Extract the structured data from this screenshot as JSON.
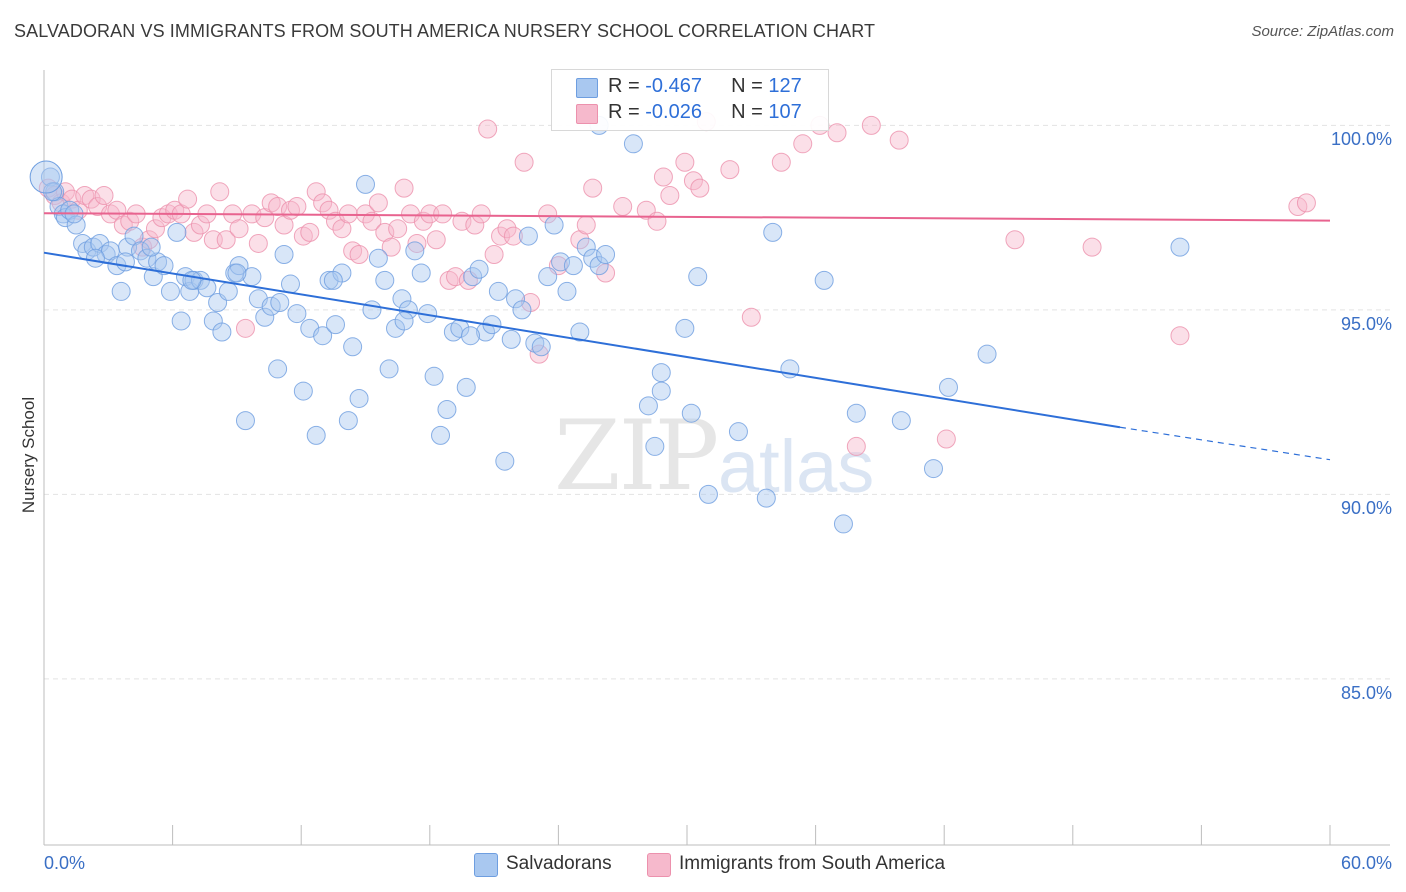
{
  "header": {
    "title": "SALVADORAN VS IMMIGRANTS FROM SOUTH AMERICA NURSERY SCHOOL CORRELATION CHART",
    "source": "Source: ZipAtlas.com"
  },
  "watermark": {
    "zip": "ZIP",
    "atlas": "atlas"
  },
  "colors": {
    "blue": "#2e6fd8",
    "blue_fill": "#a9c8f0",
    "pink": "#e8638f",
    "pink_fill": "#f6b9cc",
    "grid": "#e3e3e3",
    "axis_label": "#3a6fc5"
  },
  "legend": {
    "series": [
      {
        "r_label": "R = ",
        "r": "-0.467",
        "n_label": "N = ",
        "n": "127"
      },
      {
        "r_label": "R = ",
        "r": "-0.026",
        "n_label": "N = ",
        "n": "107"
      }
    ],
    "bottom": [
      "Salvadorans",
      "Immigrants from South America"
    ]
  },
  "chart_data": {
    "type": "scatter",
    "title": "SALVADORAN VS IMMIGRANTS FROM SOUTH AMERICA NURSERY SCHOOL CORRELATION CHART",
    "xlabel": "",
    "ylabel": "Nursery School",
    "xlim": [
      0,
      60
    ],
    "ylim": [
      80.5,
      101.5
    ],
    "x_tick_labels": [
      "0.0%",
      "60.0%"
    ],
    "y_ticks": [
      85,
      90,
      95,
      100
    ],
    "y_tick_labels": [
      "85.0%",
      "90.0%",
      "95.0%",
      "100.0%"
    ],
    "legend_position": "top-center",
    "series": [
      {
        "name": "Salvadorans",
        "color": "#2e6fd8",
        "R": -0.467,
        "N": 127,
        "trend": {
          "x0": 0,
          "y0": 96.55,
          "x1": 50.2,
          "y1": 91.82,
          "dashed_to_x": 60,
          "dashed_to_y": 90.94
        },
        "points": [
          [
            0.3,
            98.6
          ],
          [
            0.5,
            98.2
          ],
          [
            0.7,
            97.8
          ],
          [
            0.9,
            97.6
          ],
          [
            1.0,
            97.5
          ],
          [
            1.2,
            97.7
          ],
          [
            1.5,
            97.3
          ],
          [
            1.8,
            96.8
          ],
          [
            2.0,
            96.6
          ],
          [
            2.3,
            96.7
          ],
          [
            2.6,
            96.8
          ],
          [
            2.9,
            96.5
          ],
          [
            3.1,
            96.6
          ],
          [
            3.4,
            96.2
          ],
          [
            3.6,
            95.5
          ],
          [
            3.9,
            96.7
          ],
          [
            4.2,
            97.0
          ],
          [
            4.5,
            96.6
          ],
          [
            4.8,
            96.4
          ],
          [
            5.1,
            95.9
          ],
          [
            5.3,
            96.3
          ],
          [
            5.6,
            96.2
          ],
          [
            5.9,
            95.5
          ],
          [
            6.2,
            97.1
          ],
          [
            6.4,
            94.7
          ],
          [
            6.6,
            95.9
          ],
          [
            6.8,
            95.5
          ],
          [
            7.0,
            95.8
          ],
          [
            7.3,
            95.8
          ],
          [
            7.6,
            95.6
          ],
          [
            7.9,
            94.7
          ],
          [
            8.1,
            95.2
          ],
          [
            8.3,
            94.4
          ],
          [
            8.6,
            95.5
          ],
          [
            8.9,
            96.0
          ],
          [
            9.1,
            96.2
          ],
          [
            9.4,
            92.0
          ],
          [
            9.7,
            95.9
          ],
          [
            10.0,
            95.3
          ],
          [
            10.3,
            94.8
          ],
          [
            10.6,
            95.1
          ],
          [
            10.9,
            93.4
          ],
          [
            11.2,
            96.5
          ],
          [
            11.5,
            95.7
          ],
          [
            11.8,
            94.9
          ],
          [
            12.1,
            92.8
          ],
          [
            12.4,
            94.5
          ],
          [
            12.7,
            91.6
          ],
          [
            13.0,
            94.3
          ],
          [
            13.3,
            95.8
          ],
          [
            13.6,
            94.6
          ],
          [
            13.9,
            96.0
          ],
          [
            14.2,
            92.0
          ],
          [
            14.4,
            94.0
          ],
          [
            14.7,
            92.6
          ],
          [
            15.0,
            98.4
          ],
          [
            15.3,
            95.0
          ],
          [
            15.6,
            96.4
          ],
          [
            15.9,
            95.8
          ],
          [
            16.1,
            93.4
          ],
          [
            16.4,
            94.5
          ],
          [
            16.7,
            95.3
          ],
          [
            17.0,
            95.0
          ],
          [
            17.3,
            96.6
          ],
          [
            17.6,
            96.0
          ],
          [
            17.9,
            94.9
          ],
          [
            18.2,
            93.2
          ],
          [
            18.5,
            91.6
          ],
          [
            18.8,
            92.3
          ],
          [
            19.1,
            94.4
          ],
          [
            19.4,
            94.5
          ],
          [
            19.7,
            92.9
          ],
          [
            20.0,
            95.9
          ],
          [
            20.3,
            96.1
          ],
          [
            20.6,
            94.4
          ],
          [
            20.9,
            94.6
          ],
          [
            21.2,
            95.5
          ],
          [
            21.5,
            90.9
          ],
          [
            21.8,
            94.2
          ],
          [
            22.0,
            95.3
          ],
          [
            22.3,
            95.0
          ],
          [
            22.6,
            97.0
          ],
          [
            22.9,
            94.1
          ],
          [
            23.2,
            94.0
          ],
          [
            23.5,
            95.9
          ],
          [
            23.8,
            97.3
          ],
          [
            24.1,
            96.3
          ],
          [
            24.4,
            95.5
          ],
          [
            24.7,
            96.2
          ],
          [
            25.0,
            94.4
          ],
          [
            25.3,
            96.7
          ],
          [
            25.6,
            96.4
          ],
          [
            25.9,
            96.2
          ],
          [
            26.2,
            96.5
          ],
          [
            25.9,
            100.0
          ],
          [
            27.5,
            99.5
          ],
          [
            28.2,
            92.4
          ],
          [
            28.5,
            91.3
          ],
          [
            28.8,
            93.3
          ],
          [
            28.8,
            92.8
          ],
          [
            29.9,
            94.5
          ],
          [
            30.2,
            92.2
          ],
          [
            30.5,
            95.9
          ],
          [
            31.0,
            90.0
          ],
          [
            32.4,
            91.7
          ],
          [
            33.7,
            89.9
          ],
          [
            34.0,
            97.1
          ],
          [
            34.8,
            93.4
          ],
          [
            36.4,
            95.8
          ],
          [
            37.3,
            89.2
          ],
          [
            37.9,
            92.2
          ],
          [
            40.0,
            92.0
          ],
          [
            41.5,
            90.7
          ],
          [
            42.2,
            92.9
          ],
          [
            44.0,
            93.8
          ],
          [
            53.0,
            96.7
          ],
          [
            0.4,
            98.2
          ],
          [
            1.4,
            97.6
          ],
          [
            2.4,
            96.4
          ],
          [
            3.8,
            96.3
          ],
          [
            5.0,
            96.7
          ],
          [
            6.9,
            95.8
          ],
          [
            9.0,
            96.0
          ],
          [
            11.0,
            95.2
          ],
          [
            13.5,
            95.8
          ],
          [
            16.8,
            94.7
          ],
          [
            19.9,
            94.3
          ]
        ]
      },
      {
        "name": "Immigrants from South America",
        "color": "#e8638f",
        "R": -0.026,
        "N": 107,
        "trend": {
          "x0": 0,
          "y0": 97.62,
          "x1": 60,
          "y1": 97.42
        },
        "points": [
          [
            0.2,
            98.3
          ],
          [
            0.5,
            98.1
          ],
          [
            0.8,
            97.9
          ],
          [
            1.0,
            98.2
          ],
          [
            1.3,
            98.0
          ],
          [
            1.6,
            97.7
          ],
          [
            1.9,
            98.1
          ],
          [
            2.2,
            98.0
          ],
          [
            2.5,
            97.8
          ],
          [
            2.8,
            98.1
          ],
          [
            3.1,
            97.6
          ],
          [
            3.4,
            97.7
          ],
          [
            3.7,
            97.3
          ],
          [
            4.0,
            97.4
          ],
          [
            4.3,
            97.6
          ],
          [
            4.6,
            96.7
          ],
          [
            4.9,
            96.9
          ],
          [
            5.2,
            97.2
          ],
          [
            5.5,
            97.5
          ],
          [
            5.8,
            97.6
          ],
          [
            6.1,
            97.7
          ],
          [
            6.4,
            97.6
          ],
          [
            6.7,
            98.0
          ],
          [
            7.0,
            97.1
          ],
          [
            7.3,
            97.3
          ],
          [
            7.6,
            97.6
          ],
          [
            7.9,
            96.9
          ],
          [
            8.2,
            98.2
          ],
          [
            8.5,
            96.9
          ],
          [
            8.8,
            97.6
          ],
          [
            9.1,
            97.2
          ],
          [
            9.4,
            94.5
          ],
          [
            9.7,
            97.6
          ],
          [
            10.0,
            96.8
          ],
          [
            10.3,
            97.5
          ],
          [
            10.6,
            97.9
          ],
          [
            10.9,
            97.8
          ],
          [
            11.2,
            97.3
          ],
          [
            11.5,
            97.7
          ],
          [
            11.8,
            97.8
          ],
          [
            12.1,
            97.0
          ],
          [
            12.4,
            97.1
          ],
          [
            12.7,
            98.2
          ],
          [
            13.0,
            97.9
          ],
          [
            13.3,
            97.7
          ],
          [
            13.6,
            97.4
          ],
          [
            13.9,
            97.2
          ],
          [
            14.2,
            97.6
          ],
          [
            14.4,
            96.6
          ],
          [
            14.7,
            96.5
          ],
          [
            15.0,
            97.6
          ],
          [
            15.3,
            97.4
          ],
          [
            15.6,
            97.9
          ],
          [
            15.9,
            97.1
          ],
          [
            16.2,
            96.7
          ],
          [
            16.5,
            97.2
          ],
          [
            16.8,
            98.3
          ],
          [
            17.1,
            97.6
          ],
          [
            17.4,
            96.8
          ],
          [
            17.7,
            97.4
          ],
          [
            18.0,
            97.6
          ],
          [
            18.3,
            96.9
          ],
          [
            18.6,
            97.6
          ],
          [
            18.9,
            95.8
          ],
          [
            19.2,
            95.9
          ],
          [
            19.5,
            97.4
          ],
          [
            19.8,
            95.8
          ],
          [
            20.1,
            97.3
          ],
          [
            20.4,
            97.6
          ],
          [
            20.7,
            99.9
          ],
          [
            21.0,
            96.5
          ],
          [
            21.3,
            97.0
          ],
          [
            21.6,
            97.2
          ],
          [
            21.9,
            97.0
          ],
          [
            22.4,
            99.0
          ],
          [
            22.7,
            95.2
          ],
          [
            23.1,
            93.8
          ],
          [
            23.5,
            97.6
          ],
          [
            24.0,
            96.2
          ],
          [
            25.0,
            96.9
          ],
          [
            25.3,
            97.3
          ],
          [
            25.6,
            98.3
          ],
          [
            26.2,
            96.0
          ],
          [
            27.0,
            97.8
          ],
          [
            28.1,
            97.7
          ],
          [
            28.6,
            97.4
          ],
          [
            28.9,
            98.6
          ],
          [
            29.2,
            98.1
          ],
          [
            29.9,
            99.0
          ],
          [
            30.3,
            98.5
          ],
          [
            30.6,
            98.3
          ],
          [
            30.9,
            100.1
          ],
          [
            32.0,
            98.8
          ],
          [
            33.0,
            94.8
          ],
          [
            34.4,
            99.0
          ],
          [
            35.4,
            99.5
          ],
          [
            36.2,
            100.0
          ],
          [
            37.0,
            99.8
          ],
          [
            37.9,
            91.3
          ],
          [
            38.6,
            100.0
          ],
          [
            39.9,
            99.6
          ],
          [
            42.1,
            91.5
          ],
          [
            45.3,
            96.9
          ],
          [
            48.9,
            96.7
          ],
          [
            53.0,
            94.3
          ],
          [
            58.5,
            97.8
          ],
          [
            58.9,
            97.9
          ]
        ]
      }
    ]
  }
}
